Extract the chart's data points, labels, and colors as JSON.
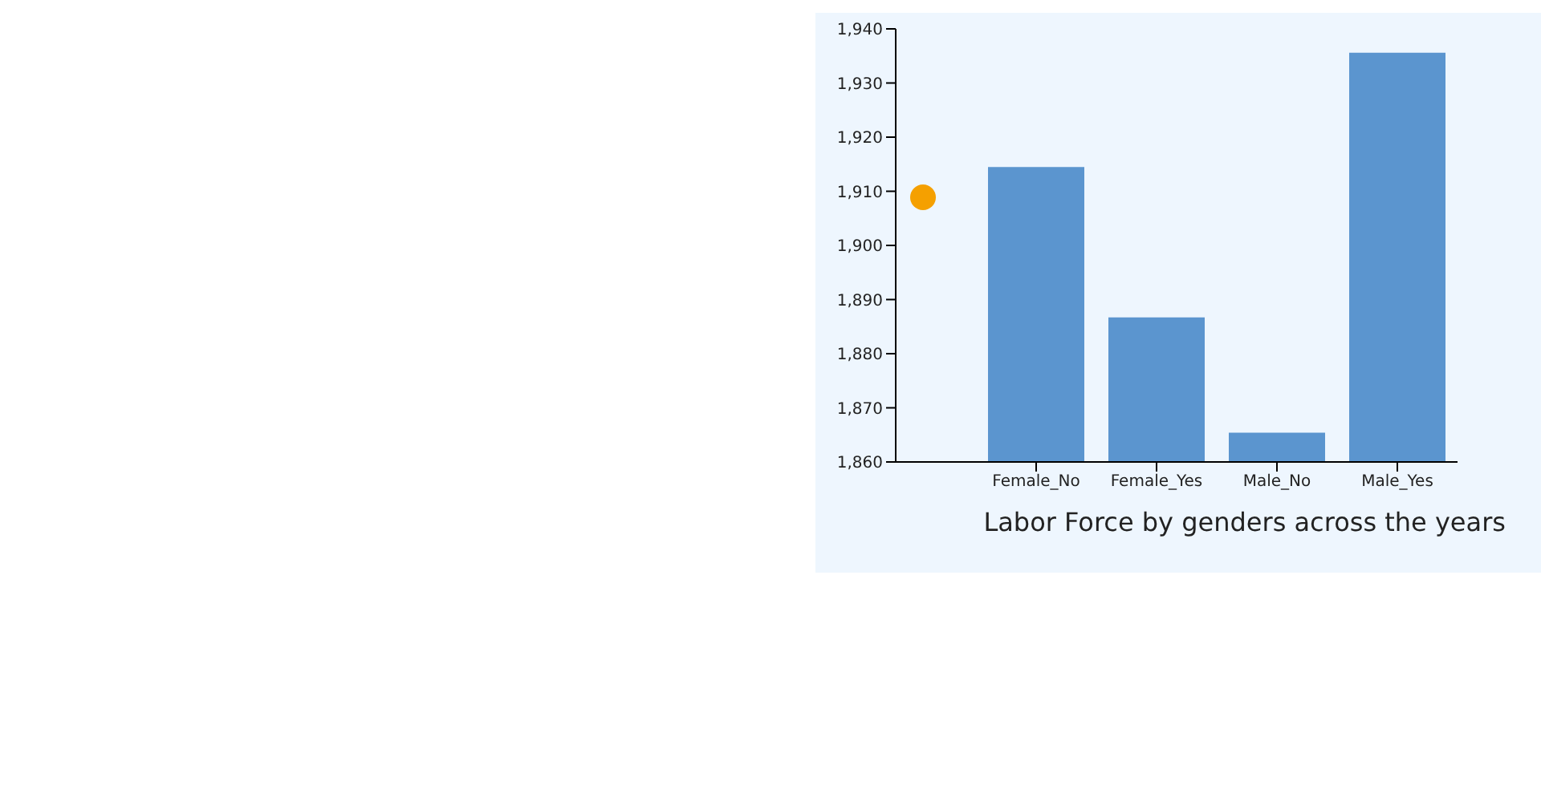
{
  "chart_data": {
    "type": "bar",
    "title": "Labor Force by genders across the years",
    "categories": [
      "Female_No",
      "Female_Yes",
      "Male_No",
      "Male_Yes"
    ],
    "values": [
      1914.5,
      1886.7,
      1865.4,
      1935.6
    ],
    "color": "#5b95cf",
    "ylim": [
      1860,
      1940
    ],
    "yticks": [
      {
        "value": 1860,
        "label": "1,860"
      },
      {
        "value": 1870,
        "label": "1,870"
      },
      {
        "value": 1880,
        "label": "1,880"
      },
      {
        "value": 1890,
        "label": "1,890"
      },
      {
        "value": 1900,
        "label": "1,900"
      },
      {
        "value": 1910,
        "label": "1,910"
      },
      {
        "value": 1920,
        "label": "1,920"
      },
      {
        "value": 1930,
        "label": "1,930"
      },
      {
        "value": 1940,
        "label": "1,940"
      }
    ],
    "grid": false,
    "legend": false
  }
}
